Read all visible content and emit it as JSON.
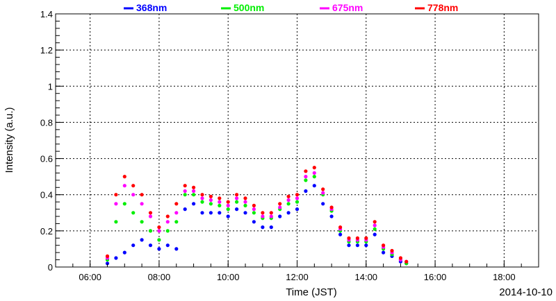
{
  "chart_data": {
    "type": "scatter",
    "xlabel": "Time (JST)",
    "ylabel": "Intensity (a.u.)",
    "date_label": "2014-10-10",
    "xlim": [
      "05:00",
      "19:00"
    ],
    "ylim": [
      0,
      1.4
    ],
    "x_ticks": [
      "06:00",
      "08:00",
      "10:00",
      "12:00",
      "14:00",
      "16:00",
      "18:00"
    ],
    "y_ticks": [
      "0",
      "0.2",
      "0.4",
      "0.6",
      "0.8",
      "1",
      "1.2",
      "1.4"
    ],
    "grid": true,
    "legend_position": "top",
    "series": [
      {
        "name": "368nm",
        "color": "#0000ff",
        "x": [
          "06:30",
          "06:45",
          "07:00",
          "07:15",
          "07:30",
          "07:45",
          "08:00",
          "08:15",
          "08:30",
          "08:45",
          "09:00",
          "09:15",
          "09:30",
          "09:45",
          "10:00",
          "10:15",
          "10:30",
          "10:45",
          "11:00",
          "11:15",
          "11:30",
          "11:45",
          "12:00",
          "12:15",
          "12:30",
          "12:45",
          "13:00",
          "13:15",
          "13:30",
          "13:45",
          "14:00",
          "14:15",
          "14:30",
          "14:45",
          "15:00",
          "15:10"
        ],
        "y": [
          0.02,
          0.05,
          0.08,
          0.12,
          0.15,
          0.12,
          0.1,
          0.12,
          0.1,
          0.32,
          0.35,
          0.3,
          0.3,
          0.3,
          0.28,
          0.32,
          0.3,
          0.25,
          0.22,
          0.22,
          0.28,
          0.3,
          0.32,
          0.42,
          0.45,
          0.35,
          0.28,
          0.18,
          0.12,
          0.12,
          0.12,
          0.18,
          0.08,
          0.06,
          0.03,
          0.02
        ]
      },
      {
        "name": "500nm",
        "color": "#00ee00",
        "x": [
          "06:30",
          "06:45",
          "07:00",
          "07:15",
          "07:30",
          "07:45",
          "08:00",
          "08:15",
          "08:30",
          "08:45",
          "09:00",
          "09:15",
          "09:30",
          "09:45",
          "10:00",
          "10:15",
          "10:30",
          "10:45",
          "11:00",
          "11:15",
          "11:30",
          "11:45",
          "12:00",
          "12:15",
          "12:30",
          "12:45",
          "13:00",
          "13:15",
          "13:30",
          "13:45",
          "14:00",
          "14:15",
          "14:30",
          "14:45",
          "15:00",
          "15:10"
        ],
        "y": [
          0.04,
          0.25,
          0.35,
          0.3,
          0.25,
          0.2,
          0.15,
          0.2,
          0.25,
          0.4,
          0.4,
          0.36,
          0.35,
          0.34,
          0.32,
          0.36,
          0.34,
          0.3,
          0.27,
          0.27,
          0.32,
          0.35,
          0.36,
          0.48,
          0.5,
          0.4,
          0.31,
          0.2,
          0.14,
          0.14,
          0.14,
          0.21,
          0.1,
          0.07,
          0.04,
          0.02
        ]
      },
      {
        "name": "675nm",
        "color": "#ff00ff",
        "x": [
          "06:30",
          "06:45",
          "07:00",
          "07:15",
          "07:30",
          "07:45",
          "08:00",
          "08:15",
          "08:30",
          "08:45",
          "09:00",
          "09:15",
          "09:30",
          "09:45",
          "10:00",
          "10:15",
          "10:30",
          "10:45",
          "11:00",
          "11:15",
          "11:30",
          "11:45",
          "12:00",
          "12:15",
          "12:30",
          "12:45",
          "13:00",
          "13:15",
          "13:30",
          "13:45",
          "14:00",
          "14:15",
          "14:30",
          "14:45",
          "15:00",
          "15:10"
        ],
        "y": [
          0.05,
          0.35,
          0.45,
          0.4,
          0.35,
          0.28,
          0.2,
          0.25,
          0.3,
          0.42,
          0.42,
          0.38,
          0.37,
          0.36,
          0.34,
          0.38,
          0.36,
          0.32,
          0.28,
          0.28,
          0.33,
          0.37,
          0.38,
          0.5,
          0.52,
          0.41,
          0.32,
          0.21,
          0.15,
          0.15,
          0.15,
          0.23,
          0.11,
          0.08,
          0.04,
          0.03
        ]
      },
      {
        "name": "778nm",
        "color": "#ff0000",
        "x": [
          "06:30",
          "06:45",
          "07:00",
          "07:15",
          "07:30",
          "07:45",
          "08:00",
          "08:15",
          "08:30",
          "08:45",
          "09:00",
          "09:15",
          "09:30",
          "09:45",
          "10:00",
          "10:15",
          "10:30",
          "10:45",
          "11:00",
          "11:15",
          "11:30",
          "11:45",
          "12:00",
          "12:15",
          "12:30",
          "12:45",
          "13:00",
          "13:15",
          "13:30",
          "13:45",
          "14:00",
          "14:15",
          "14:30",
          "14:45",
          "15:00",
          "15:10"
        ],
        "y": [
          0.06,
          0.4,
          0.5,
          0.45,
          0.4,
          0.3,
          0.22,
          0.28,
          0.35,
          0.45,
          0.44,
          0.4,
          0.39,
          0.38,
          0.36,
          0.4,
          0.38,
          0.34,
          0.3,
          0.3,
          0.35,
          0.39,
          0.4,
          0.53,
          0.55,
          0.43,
          0.33,
          0.22,
          0.16,
          0.16,
          0.16,
          0.25,
          0.12,
          0.09,
          0.05,
          0.03
        ]
      }
    ]
  }
}
